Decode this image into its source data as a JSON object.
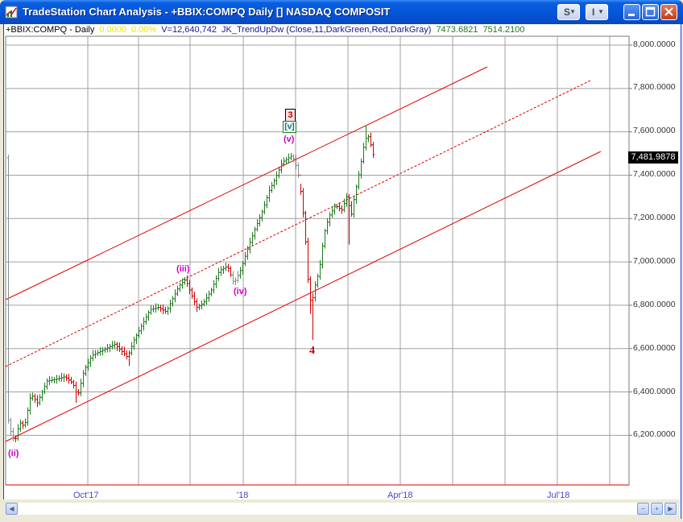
{
  "window": {
    "title": "TradeStation Chart Analysis - +BBIX:COMPQ Daily [] NASDAQ COMPOSIT",
    "style_btn": "S",
    "info_btn": "I"
  },
  "header": {
    "symbol": "+BBIX:COMPQ - Daily",
    "change": "0.0000",
    "change_pct": "0.00%",
    "volume": "V=12,640,742",
    "indicator": "JK_TrendUpDw (Close,11,DarkGreen,Red,DarkGray)",
    "ind_val1": "7473.6821",
    "ind_val2": "7514.2100"
  },
  "axes": {
    "x_labels": [
      "Oct'17",
      "'18",
      "Apr'18",
      "Jul'18"
    ],
    "y_labels": [
      "8,000.0000",
      "7,800.0000",
      "7,600.0000",
      "7,400.0000",
      "7,200.0000",
      "7,000.0000",
      "6,800.0000",
      "6,600.0000",
      "6,400.0000",
      "6,200.0000"
    ],
    "last_price": "7,481.9878"
  },
  "annotations": {
    "w_iii": "(iii)",
    "w_iv": "(iv)",
    "w_v": "(v)",
    "w_ii": "(ii)",
    "w_box3": "3",
    "w_boxv": "[v]",
    "w_4": "4"
  },
  "colors": {
    "up": "#1f7a1f",
    "down": "#cc0000",
    "neutral": "#8a8a8a",
    "channel": "#dd0000",
    "grid": "#a0a0a0",
    "wave_label": "#cc00cc"
  }
}
